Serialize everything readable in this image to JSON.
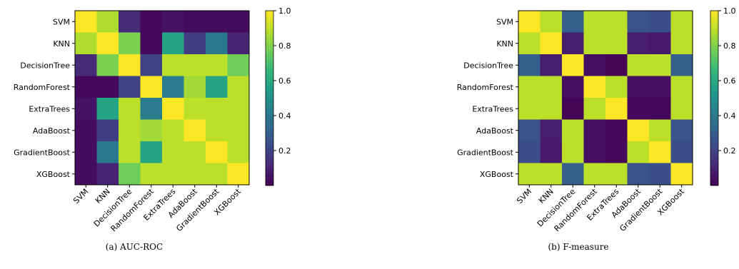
{
  "colormap": [
    "#440154",
    "#482878",
    "#3e4989",
    "#31688e",
    "#26828e",
    "#1f9e89",
    "#35b779",
    "#6ece58",
    "#b5de2b",
    "#fde725"
  ],
  "chart_data": [
    {
      "type": "heatmap",
      "caption": "(a) AUC-ROC",
      "labels": [
        "SVM",
        "KNN",
        "DecisionTree",
        "RandomForest",
        "ExtraTrees",
        "AdaBoost",
        "GradientBoost",
        "XGBoost"
      ],
      "values": [
        [
          1.0,
          0.88,
          0.12,
          0.02,
          0.05,
          0.03,
          0.03,
          0.03
        ],
        [
          0.88,
          1.0,
          0.8,
          0.02,
          0.58,
          0.18,
          0.4,
          0.1
        ],
        [
          0.12,
          0.8,
          1.0,
          0.2,
          0.9,
          0.9,
          0.9,
          0.78
        ],
        [
          0.02,
          0.02,
          0.2,
          1.0,
          0.42,
          0.86,
          0.58,
          0.9
        ],
        [
          0.05,
          0.58,
          0.9,
          0.42,
          1.0,
          0.9,
          0.9,
          0.9
        ],
        [
          0.03,
          0.18,
          0.9,
          0.86,
          0.9,
          1.0,
          0.9,
          0.9
        ],
        [
          0.03,
          0.4,
          0.9,
          0.58,
          0.9,
          0.9,
          1.0,
          0.9
        ],
        [
          0.03,
          0.1,
          0.78,
          0.9,
          0.9,
          0.9,
          0.9,
          1.0
        ]
      ],
      "colorbar": {
        "ticks": [
          1.0,
          0.8,
          0.6,
          0.4,
          0.2
        ],
        "tick_labels": [
          "1.0",
          "0.8",
          "0.6",
          "0.4",
          "0.2"
        ],
        "range": [
          0.0,
          1.0
        ]
      }
    },
    {
      "type": "heatmap",
      "caption": "(b) F-measure",
      "labels": [
        "SVM",
        "KNN",
        "DecisionTree",
        "RandomForest",
        "ExtraTrees",
        "AdaBoost",
        "GradientBoost",
        "XGBoost"
      ],
      "values": [
        [
          1.0,
          0.9,
          0.3,
          0.9,
          0.9,
          0.26,
          0.24,
          0.9
        ],
        [
          0.9,
          1.0,
          0.08,
          0.9,
          0.9,
          0.08,
          0.07,
          0.9
        ],
        [
          0.3,
          0.08,
          1.0,
          0.04,
          0.01,
          0.9,
          0.9,
          0.3
        ],
        [
          0.9,
          0.9,
          0.04,
          1.0,
          0.9,
          0.04,
          0.04,
          0.9
        ],
        [
          0.9,
          0.9,
          0.01,
          0.9,
          1.0,
          0.02,
          0.02,
          0.9
        ],
        [
          0.26,
          0.08,
          0.9,
          0.04,
          0.02,
          1.0,
          0.9,
          0.26
        ],
        [
          0.24,
          0.07,
          0.9,
          0.04,
          0.02,
          0.9,
          1.0,
          0.24
        ],
        [
          0.9,
          0.9,
          0.3,
          0.9,
          0.9,
          0.26,
          0.24,
          1.0
        ]
      ],
      "colorbar": {
        "ticks": [
          1.0,
          0.8,
          0.6,
          0.4,
          0.2
        ],
        "tick_labels": [
          "1.0",
          "0.8",
          "0.6",
          "0.4",
          "0.2"
        ],
        "range": [
          0.0,
          1.0
        ]
      }
    }
  ]
}
